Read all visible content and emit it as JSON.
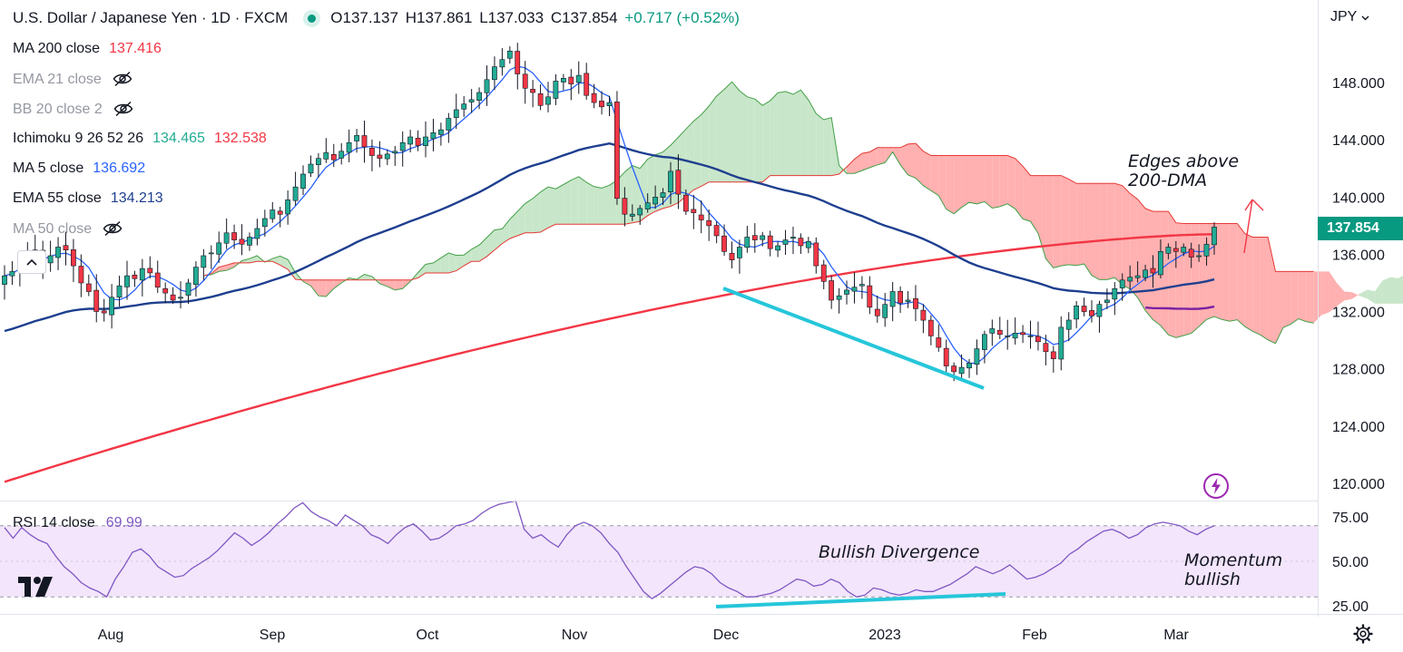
{
  "header": {
    "symbol": "U.S. Dollar / Japanese Yen · 1D · FXCM",
    "ohlc": [
      "O137.137",
      "H137.861",
      "L137.033",
      "C137.854",
      "+0.717 (+0.52%)"
    ]
  },
  "indicators": [
    {
      "label": "MA 200 close",
      "values": [
        "137.416"
      ],
      "colors": [
        "#f23645"
      ],
      "hidden": false
    },
    {
      "label": "EMA 21 close",
      "values": [],
      "colors": [],
      "hidden": true
    },
    {
      "label": "BB 20 close 2",
      "values": [],
      "colors": [],
      "hidden": true
    },
    {
      "label": "Ichimoku 9 26 52 26",
      "values": [
        "134.465",
        "132.538"
      ],
      "colors": [
        "#22ab94",
        "#f23645"
      ],
      "hidden": false
    },
    {
      "label": "MA 5 close",
      "values": [
        "136.692"
      ],
      "colors": [
        "#2962ff"
      ],
      "hidden": false
    },
    {
      "label": "EMA 55 close",
      "values": [
        "134.213"
      ],
      "colors": [
        "#1e3f8f"
      ],
      "hidden": false
    },
    {
      "label": "MA 50 close",
      "values": [],
      "colors": [],
      "hidden": true
    }
  ],
  "currency": "JPY",
  "last_price": "137.854",
  "rsi": {
    "label": "RSI 14 close",
    "value": "69.99"
  },
  "annotations": {
    "edges_line1": "Edges above",
    "edges_line2": "200-DMA",
    "divergence": "Bullish Divergence",
    "momentum_line1": "Momentum",
    "momentum_line2": "bullish"
  },
  "colors": {
    "up": "#22ab94",
    "down": "#f23645",
    "ma200": "#f23645",
    "ema55": "#1e3f8f",
    "ma5": "#2962ff",
    "ma50": "#7b1fa2",
    "rsi": "#7e57c2",
    "rsi_band": "#f3e5fb",
    "cloud_bull": "#c8e6c9",
    "cloud_bear": "#ffb0b0",
    "trendline": "#26c6da",
    "accent": "#089981"
  },
  "icons": [
    "eye-off-icon",
    "chevron-up-icon",
    "chevron-down-icon",
    "lightning-icon",
    "gear-icon",
    "tradingview-logo"
  ],
  "chart_data": [
    {
      "type": "candlestick",
      "title": "U.S. Dollar / Japanese Yen · 1D · FXCM",
      "x_ticks": [
        "Aug",
        "Sep",
        "Oct",
        "Nov",
        "Dec",
        "2023",
        "Feb",
        "Mar"
      ],
      "y_ticks": [
        "120.000",
        "124.000",
        "128.000",
        "132.000",
        "136.000",
        "140.000",
        "144.000",
        "148.000"
      ],
      "ylim": [
        119,
        151
      ],
      "closes": [
        134.5,
        134.8,
        135.7,
        136.0,
        136.3,
        135.4,
        135.9,
        136.5,
        136.3,
        135.2,
        134.0,
        133.4,
        132.0,
        131.9,
        133.0,
        133.8,
        134.5,
        134.3,
        135.0,
        134.7,
        133.7,
        133.3,
        132.8,
        133.0,
        134.0,
        135.1,
        135.9,
        136.1,
        136.8,
        137.5,
        137.0,
        136.7,
        137.2,
        137.8,
        138.5,
        139.1,
        138.8,
        139.8,
        140.7,
        141.6,
        142.3,
        142.7,
        143.1,
        142.6,
        143.2,
        143.8,
        144.3,
        143.5,
        142.9,
        142.7,
        143.0,
        143.2,
        143.8,
        144.2,
        143.6,
        144.2,
        144.5,
        144.7,
        145.5,
        146.1,
        146.5,
        146.8,
        147.3,
        148.2,
        149.1,
        149.6,
        150.2,
        148.6,
        147.6,
        147.3,
        146.4,
        147.0,
        148.1,
        148.3,
        147.9,
        148.5,
        147.1,
        146.6,
        146.3,
        146.6,
        139.9,
        138.8,
        138.8,
        139.2,
        139.6,
        140.0,
        140.3,
        141.8,
        140.2,
        139.0,
        138.9,
        138.4,
        138.0,
        137.3,
        136.2,
        135.6,
        136.5,
        137.2,
        137.0,
        137.3,
        136.4,
        136.6,
        137.0,
        137.2,
        136.6,
        136.9,
        135.2,
        134.1,
        132.8,
        133.1,
        133.5,
        133.7,
        133.9,
        132.3,
        131.7,
        132.5,
        133.4,
        132.6,
        132.8,
        132.2,
        131.4,
        130.3,
        129.5,
        128.2,
        127.8,
        128.1,
        128.4,
        129.4,
        130.4,
        130.8,
        130.4,
        130.3,
        130.5,
        130.4,
        130.3,
        129.9,
        129.2,
        128.7,
        130.9,
        131.4,
        132.4,
        132.0,
        131.7,
        132.5,
        132.8,
        133.6,
        134.2,
        134.4,
        134.5,
        134.9,
        134.7,
        136.2,
        136.5,
        136.2,
        136.5,
        135.8,
        135.9,
        136.7,
        137.9
      ],
      "series": [
        {
          "name": "MA 200 close",
          "last": 137.416
        },
        {
          "name": "EMA 55 close",
          "last": 134.213
        },
        {
          "name": "MA 5 close",
          "last": 136.692
        },
        {
          "name": "Ichimoku 9 26 52 26",
          "last": [
            134.465,
            132.538
          ]
        },
        {
          "name": "MA 50 close",
          "last": 134.3
        }
      ]
    },
    {
      "type": "line",
      "title": "RSI 14 close",
      "y_ticks": [
        "25.00",
        "50.00",
        "75.00"
      ],
      "ylim": [
        20,
        85
      ],
      "band": [
        30,
        70
      ],
      "values": [
        69,
        63,
        69,
        65,
        62,
        60,
        53,
        47,
        43,
        38,
        35,
        33,
        30,
        40,
        47,
        55,
        57,
        53,
        47,
        44,
        41,
        42,
        46,
        49,
        52,
        56,
        61,
        66,
        63,
        59,
        62,
        66,
        71,
        75,
        80,
        83,
        78,
        75,
        73,
        70,
        76,
        73,
        70,
        65,
        63,
        60,
        65,
        69,
        71,
        67,
        62,
        63,
        66,
        70,
        71,
        73,
        77,
        80,
        82,
        83,
        84,
        68,
        63,
        65,
        61,
        58,
        65,
        70,
        72,
        70,
        66,
        60,
        55,
        47,
        40,
        33,
        29,
        32,
        36,
        40,
        44,
        47,
        46,
        43,
        38,
        35,
        33,
        30,
        30,
        31,
        32,
        34,
        37,
        40,
        39,
        36,
        37,
        40,
        38,
        33,
        30,
        31,
        35,
        34,
        32,
        31,
        32,
        34,
        33,
        33,
        35,
        37,
        40,
        43,
        47,
        45,
        43,
        45,
        48,
        44,
        40,
        41,
        43,
        46,
        49,
        54,
        57,
        61,
        64,
        67,
        68,
        66,
        63,
        65,
        69,
        71,
        72,
        71,
        70,
        67,
        65,
        68,
        70
      ]
    }
  ]
}
